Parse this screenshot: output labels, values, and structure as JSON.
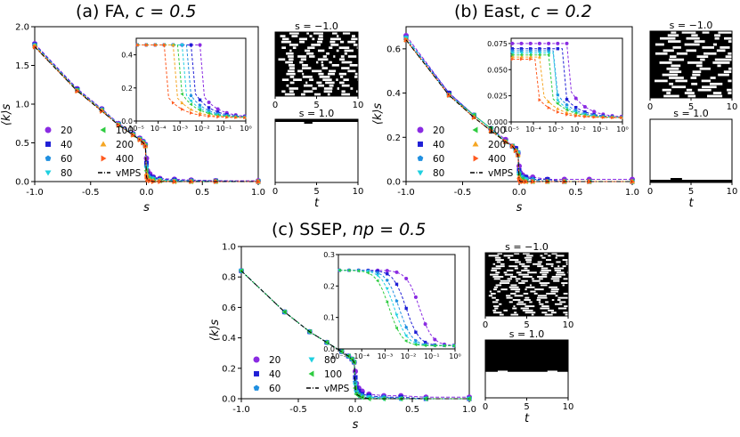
{
  "chart_data": [
    {
      "id": "fa",
      "type": "line",
      "title": "(a) FA, c = 0.5",
      "title_plain": "(a) FA, ",
      "title_math": "c = 0.5",
      "xlabel": "s",
      "ylabel": "⟨k⟩s",
      "xlim": [
        -1.0,
        1.0
      ],
      "ylim": [
        0.0,
        2.0
      ],
      "xticks": [
        "-1.0",
        "-0.5",
        "0.0",
        "0.5",
        "1.0"
      ],
      "yticks": [
        "0.0",
        "0.5",
        "1.0",
        "1.5",
        "2.0"
      ],
      "x": [
        -1.0,
        -0.62,
        -0.4,
        -0.25,
        -0.12,
        -0.06,
        -0.03,
        -0.01,
        0.0,
        0.01,
        0.03,
        0.06,
        0.12,
        0.25,
        0.4,
        0.62,
        1.0
      ],
      "series": [
        {
          "name": "20",
          "color": "#8a2be2",
          "marker": "circle",
          "values": [
            1.78,
            1.2,
            0.94,
            0.75,
            0.62,
            0.56,
            0.52,
            0.48,
            0.3,
            0.14,
            0.1,
            0.06,
            0.04,
            0.03,
            0.02,
            0.01,
            0.01
          ]
        },
        {
          "name": "40",
          "color": "#1f1fd6",
          "marker": "square",
          "values": [
            1.77,
            1.19,
            0.93,
            0.74,
            0.61,
            0.55,
            0.51,
            0.47,
            0.24,
            0.1,
            0.07,
            0.05,
            0.03,
            0.02,
            0.01,
            0.01,
            0.0
          ]
        },
        {
          "name": "60",
          "color": "#1f8fe0",
          "marker": "pentagon",
          "values": [
            1.76,
            1.18,
            0.93,
            0.74,
            0.61,
            0.55,
            0.51,
            0.47,
            0.2,
            0.08,
            0.05,
            0.04,
            0.02,
            0.01,
            0.01,
            0.0,
            0.0
          ]
        },
        {
          "name": "80",
          "color": "#1fd0e0",
          "marker": "tri_down",
          "values": [
            1.76,
            1.18,
            0.92,
            0.74,
            0.61,
            0.55,
            0.51,
            0.47,
            0.17,
            0.06,
            0.04,
            0.03,
            0.02,
            0.01,
            0.0,
            0.0,
            0.0
          ]
        },
        {
          "name": "100",
          "color": "#2ecc40",
          "marker": "tri_left",
          "values": [
            1.75,
            1.18,
            0.92,
            0.73,
            0.6,
            0.54,
            0.5,
            0.46,
            0.14,
            0.05,
            0.03,
            0.02,
            0.01,
            0.0,
            0.0,
            0.0,
            0.0
          ]
        },
        {
          "name": "200",
          "color": "#f5a623",
          "marker": "tri_up",
          "values": [
            1.75,
            1.17,
            0.92,
            0.73,
            0.6,
            0.54,
            0.5,
            0.46,
            0.1,
            0.03,
            0.02,
            0.01,
            0.01,
            0.0,
            0.0,
            0.0,
            0.0
          ]
        },
        {
          "name": "400",
          "color": "#ff5a1f",
          "marker": "tri_right",
          "values": [
            1.74,
            1.17,
            0.91,
            0.73,
            0.6,
            0.54,
            0.5,
            0.46,
            0.06,
            0.02,
            0.01,
            0.0,
            0.0,
            0.0,
            0.0,
            0.0,
            0.0
          ]
        }
      ],
      "vmps_label": "vMPS",
      "legend_entries": [
        "20",
        "40",
        "60",
        "80",
        "100",
        "200",
        "400",
        "vMPS"
      ],
      "inset": {
        "xscale": "log",
        "xlim": [
          1e-05,
          1
        ],
        "xticks": [
          "10⁻⁵",
          "10⁻⁴",
          "10⁻³",
          "10⁻²",
          "10⁻¹",
          "10⁰"
        ],
        "ylim": [
          0.0,
          0.5
        ],
        "yticks": [
          "0.0",
          "0.2",
          "0.4"
        ],
        "high": 0.46,
        "low": 0.02,
        "transition_s": [
          0.009,
          0.0045,
          0.0025,
          0.0016,
          0.0011,
          0.0005,
          0.0002
        ]
      },
      "snapshots": [
        {
          "title": "s = −1.0",
          "xticks": [
            "0",
            "5",
            "10"
          ],
          "xlabel": "",
          "pattern": "dense"
        },
        {
          "title": "s = 1.0",
          "xticks": [
            "0",
            "5",
            "10"
          ],
          "xlabel": "t",
          "pattern": "empty_top"
        }
      ]
    },
    {
      "id": "east",
      "type": "line",
      "title": "(b) East, c = 0.2",
      "title_plain": "(b) East, ",
      "title_math": "c = 0.2",
      "xlabel": "s",
      "ylabel": "⟨k⟩s",
      "xlim": [
        -1.0,
        1.0
      ],
      "ylim": [
        0.0,
        0.7
      ],
      "xticks": [
        "-1.0",
        "-0.5",
        "0.0",
        "0.5",
        "1.0"
      ],
      "yticks": [
        "0.0",
        "0.2",
        "0.4",
        "0.6"
      ],
      "x": [
        -1.0,
        -0.62,
        -0.4,
        -0.25,
        -0.12,
        -0.06,
        -0.03,
        -0.01,
        0.0,
        0.01,
        0.03,
        0.06,
        0.12,
        0.25,
        0.4,
        0.62,
        1.0
      ],
      "series": [
        {
          "name": "20",
          "color": "#8a2be2",
          "marker": "circle",
          "values": [
            0.66,
            0.4,
            0.3,
            0.24,
            0.19,
            0.16,
            0.15,
            0.13,
            0.07,
            0.04,
            0.03,
            0.02,
            0.02,
            0.01,
            0.01,
            0.01,
            0.01
          ]
        },
        {
          "name": "40",
          "color": "#1f1fd6",
          "marker": "square",
          "values": [
            0.65,
            0.4,
            0.3,
            0.24,
            0.18,
            0.16,
            0.15,
            0.13,
            0.05,
            0.03,
            0.02,
            0.02,
            0.01,
            0.01,
            0.0,
            0.0,
            0.0
          ]
        },
        {
          "name": "60",
          "color": "#1f8fe0",
          "marker": "pentagon",
          "values": [
            0.65,
            0.39,
            0.3,
            0.24,
            0.18,
            0.16,
            0.14,
            0.13,
            0.04,
            0.02,
            0.02,
            0.01,
            0.01,
            0.0,
            0.0,
            0.0,
            0.0
          ]
        },
        {
          "name": "80",
          "color": "#1fd0e0",
          "marker": "tri_down",
          "values": [
            0.65,
            0.39,
            0.3,
            0.24,
            0.18,
            0.16,
            0.14,
            0.13,
            0.03,
            0.02,
            0.01,
            0.01,
            0.0,
            0.0,
            0.0,
            0.0,
            0.0
          ]
        },
        {
          "name": "100",
          "color": "#2ecc40",
          "marker": "tri_left",
          "values": [
            0.64,
            0.39,
            0.3,
            0.24,
            0.18,
            0.16,
            0.14,
            0.12,
            0.03,
            0.01,
            0.01,
            0.0,
            0.0,
            0.0,
            0.0,
            0.0,
            0.0
          ]
        },
        {
          "name": "200",
          "color": "#f5a623",
          "marker": "tri_up",
          "values": [
            0.64,
            0.39,
            0.29,
            0.23,
            0.18,
            0.16,
            0.14,
            0.12,
            0.02,
            0.01,
            0.0,
            0.0,
            0.0,
            0.0,
            0.0,
            0.0,
            0.0
          ]
        },
        {
          "name": "400",
          "color": "#ff5a1f",
          "marker": "tri_right",
          "values": [
            0.64,
            0.39,
            0.29,
            0.23,
            0.18,
            0.16,
            0.14,
            0.12,
            0.01,
            0.0,
            0.0,
            0.0,
            0.0,
            0.0,
            0.0,
            0.0,
            0.0
          ]
        }
      ],
      "vmps_label": "vMPS",
      "legend_entries": [
        "20",
        "40",
        "60",
        "80",
        "100",
        "200",
        "400",
        "vMPS"
      ],
      "inset": {
        "xscale": "log",
        "xlim": [
          1e-05,
          1
        ],
        "xticks": [
          "10⁻⁵",
          "10⁻⁴",
          "10⁻³",
          "10⁻²",
          "10⁻¹",
          "10⁰"
        ],
        "ylim": [
          0.0,
          0.08
        ],
        "yticks": [
          "0.000",
          "0.025",
          "0.050",
          "0.075"
        ],
        "high": [
          0.075,
          0.07,
          0.068,
          0.066,
          0.064,
          0.062,
          0.06
        ],
        "low": 0.004,
        "transition_s": [
          0.005,
          0.002,
          0.0012,
          0.0008,
          0.0006,
          0.0003,
          0.00015
        ]
      },
      "snapshots": [
        {
          "title": "s = −1.0",
          "xticks": [
            "0",
            "5",
            "10"
          ],
          "xlabel": "",
          "pattern": "bars"
        },
        {
          "title": "s = 1.0",
          "xticks": [
            "0",
            "5",
            "10"
          ],
          "xlabel": "t",
          "pattern": "empty_bottom"
        }
      ]
    },
    {
      "id": "ssep",
      "type": "line",
      "title": "(c) SSEP, np = 0.5",
      "title_plain": "(c) SSEP, ",
      "title_math": "np = 0.5",
      "xlabel": "s",
      "ylabel": "⟨k⟩s",
      "xlim": [
        -1.0,
        1.0
      ],
      "ylim": [
        0.0,
        1.0
      ],
      "xticks": [
        "-1.0",
        "-0.5",
        "0.0",
        "0.5",
        "1.0"
      ],
      "yticks": [
        "0.0",
        "0.2",
        "0.4",
        "0.6",
        "0.8",
        "1.0"
      ],
      "x": [
        -1.0,
        -0.62,
        -0.4,
        -0.25,
        -0.12,
        -0.06,
        -0.03,
        -0.01,
        0.0,
        0.01,
        0.03,
        0.06,
        0.12,
        0.25,
        0.4,
        0.62,
        1.0
      ],
      "series": [
        {
          "name": "20",
          "color": "#8a2be2",
          "marker": "circle",
          "values": [
            0.84,
            0.57,
            0.44,
            0.37,
            0.31,
            0.28,
            0.26,
            0.24,
            0.18,
            0.1,
            0.07,
            0.05,
            0.03,
            0.02,
            0.02,
            0.01,
            0.01
          ]
        },
        {
          "name": "40",
          "color": "#1f1fd6",
          "marker": "square",
          "values": [
            0.84,
            0.57,
            0.44,
            0.37,
            0.31,
            0.28,
            0.26,
            0.24,
            0.14,
            0.07,
            0.05,
            0.03,
            0.02,
            0.01,
            0.01,
            0.0,
            0.0
          ]
        },
        {
          "name": "60",
          "color": "#1f8fe0",
          "marker": "pentagon",
          "values": [
            0.84,
            0.57,
            0.44,
            0.37,
            0.31,
            0.28,
            0.26,
            0.24,
            0.11,
            0.05,
            0.03,
            0.02,
            0.01,
            0.01,
            0.0,
            0.0,
            0.0
          ]
        },
        {
          "name": "80",
          "color": "#1fd0e0",
          "marker": "tri_down",
          "values": [
            0.84,
            0.57,
            0.44,
            0.37,
            0.31,
            0.28,
            0.26,
            0.24,
            0.09,
            0.04,
            0.02,
            0.01,
            0.01,
            0.0,
            0.0,
            0.0,
            0.0
          ]
        },
        {
          "name": "100",
          "color": "#2ecc40",
          "marker": "tri_left",
          "values": [
            0.84,
            0.57,
            0.44,
            0.37,
            0.31,
            0.28,
            0.26,
            0.24,
            0.07,
            0.03,
            0.02,
            0.01,
            0.0,
            0.0,
            0.0,
            0.0,
            0.0
          ]
        }
      ],
      "vmps_label": "vMPS",
      "legend_entries": [
        "20",
        "40",
        "60",
        "80",
        "100",
        "vMPS"
      ],
      "inset": {
        "xscale": "log",
        "xlim": [
          1e-05,
          1
        ],
        "xticks": [
          "10⁻⁵",
          "10⁻⁴",
          "10⁻³",
          "10⁻²",
          "10⁻¹",
          "10⁰"
        ],
        "ylim": [
          0.0,
          0.3
        ],
        "yticks": [
          "0.0",
          "0.1",
          "0.2",
          "0.3"
        ],
        "high": 0.25,
        "low": 0.01,
        "transition_s": [
          0.03,
          0.008,
          0.004,
          0.0025,
          0.0015
        ],
        "smooth": true
      },
      "snapshots": [
        {
          "title": "s = −1.0",
          "xticks": [
            "0",
            "5",
            "10"
          ],
          "xlabel": "",
          "pattern": "noise"
        },
        {
          "title": "s = 1.0",
          "xticks": [
            "0",
            "5",
            "10"
          ],
          "xlabel": "t",
          "pattern": "half_black"
        }
      ]
    }
  ]
}
